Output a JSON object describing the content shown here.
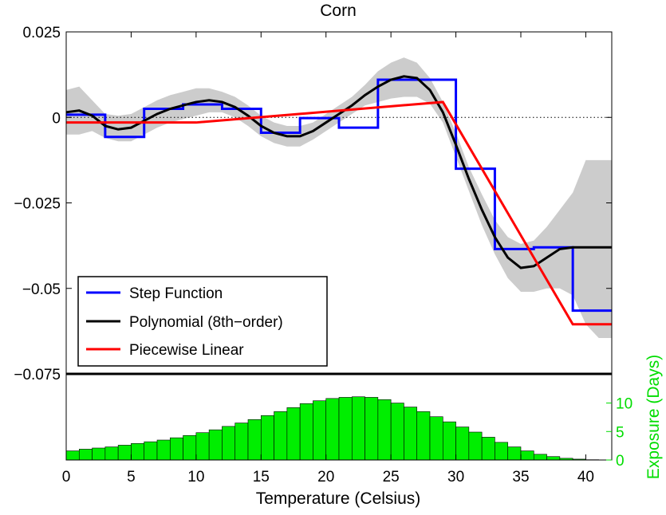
{
  "chart_data": {
    "type": "line",
    "title": "Corn",
    "xlabel": "Temperature (Celsius)",
    "ylabel": "",
    "y2label": "Exposure (Days)",
    "xlim": [
      0,
      42
    ],
    "ylim": [
      -0.075,
      0.025
    ],
    "y2lim": [
      0,
      14
    ],
    "xticks": [
      "0",
      "5",
      "10",
      "15",
      "20",
      "25",
      "30",
      "35",
      "40"
    ],
    "yticks": [
      "0.025",
      "0",
      "−0.025",
      "−0.05",
      "−0.075"
    ],
    "y2ticks": [
      "0",
      "5",
      "10"
    ],
    "grid": false,
    "legend_position": "lower-left",
    "zero_line": "dotted",
    "colors": {
      "step": "#0000ff",
      "poly": "#000000",
      "piecewise": "#ff0000",
      "band": "#cccccc",
      "exposure": "#00ee00",
      "y2axis": "#00dd00"
    },
    "series": [
      {
        "name": "Step Function",
        "kind": "step",
        "breaks": [
          0,
          3,
          6,
          9,
          12,
          15,
          18,
          21,
          24,
          27,
          30,
          33,
          36,
          39,
          42
        ],
        "values": [
          0.0008,
          -0.0057,
          0.0025,
          0.0038,
          0.0025,
          -0.0045,
          -0.0002,
          -0.003,
          0.011,
          0.011,
          -0.015,
          -0.0385,
          -0.038,
          -0.0565
        ]
      },
      {
        "name": "Polynomial (8th−order)",
        "kind": "line",
        "x": [
          0,
          1,
          2,
          3,
          4,
          5,
          6,
          7,
          8,
          9,
          10,
          11,
          12,
          13,
          14,
          15,
          16,
          17,
          18,
          19,
          20,
          21,
          22,
          23,
          24,
          25,
          26,
          27,
          28,
          29,
          30,
          31,
          32,
          33,
          34,
          35,
          36,
          37,
          38,
          39,
          40,
          41,
          42
        ],
        "y": [
          0.0015,
          0.002,
          0.0005,
          -0.0025,
          -0.0035,
          -0.003,
          -0.001,
          0.001,
          0.0025,
          0.0035,
          0.0045,
          0.005,
          0.0045,
          0.003,
          0.0005,
          -0.0025,
          -0.0045,
          -0.0055,
          -0.0055,
          -0.004,
          -0.0015,
          0.001,
          0.0035,
          0.0065,
          0.009,
          0.011,
          0.012,
          0.0115,
          0.008,
          0.0015,
          -0.008,
          -0.018,
          -0.027,
          -0.035,
          -0.041,
          -0.044,
          -0.0435,
          -0.041,
          -0.0385,
          -0.038,
          -0.038,
          -0.038,
          -0.038
        ]
      },
      {
        "name": "Piecewise Linear",
        "kind": "line",
        "x": [
          0,
          10,
          29,
          39,
          42
        ],
        "y": [
          -0.0015,
          -0.0015,
          0.0045,
          -0.0605,
          -0.0605
        ]
      }
    ],
    "confidence_band": {
      "x": [
        0,
        1,
        2,
        3,
        4,
        5,
        6,
        7,
        8,
        9,
        10,
        11,
        12,
        13,
        14,
        15,
        16,
        17,
        18,
        19,
        20,
        21,
        22,
        23,
        24,
        25,
        26,
        27,
        28,
        29,
        30,
        31,
        32,
        33,
        34,
        35,
        36,
        37,
        38,
        39,
        40,
        41,
        42
      ],
      "upper": [
        0.008,
        0.009,
        0.005,
        0.001,
        0.0005,
        0.001,
        0.003,
        0.005,
        0.0065,
        0.0075,
        0.0085,
        0.0085,
        0.0075,
        0.006,
        0.0035,
        0.0005,
        -0.0015,
        -0.0025,
        -0.0025,
        -0.0015,
        0.001,
        0.0035,
        0.006,
        0.0095,
        0.0135,
        0.016,
        0.0175,
        0.016,
        0.0115,
        0.0045,
        -0.0045,
        -0.0145,
        -0.0225,
        -0.03,
        -0.035,
        -0.037,
        -0.036,
        -0.032,
        -0.027,
        -0.022,
        -0.0125,
        -0.0125,
        -0.0125
      ],
      "lower": [
        -0.005,
        -0.005,
        -0.004,
        -0.006,
        -0.007,
        -0.007,
        -0.005,
        -0.003,
        -0.0015,
        -0.0005,
        0.0005,
        0.0015,
        0.0015,
        0.0,
        -0.0025,
        -0.0055,
        -0.0075,
        -0.0085,
        -0.0085,
        -0.0065,
        -0.004,
        -0.0015,
        0.001,
        0.0035,
        0.0045,
        0.0055,
        0.006,
        0.006,
        0.004,
        -0.0015,
        -0.0115,
        -0.0215,
        -0.0315,
        -0.04,
        -0.047,
        -0.051,
        -0.051,
        -0.05,
        -0.05,
        -0.052,
        -0.0605,
        -0.0645,
        -0.0645
      ]
    },
    "exposure": {
      "bin_start": 0,
      "bin_width": 1,
      "values": [
        1.6,
        1.9,
        2.1,
        2.3,
        2.6,
        2.9,
        3.2,
        3.5,
        3.9,
        4.3,
        4.8,
        5.3,
        5.9,
        6.5,
        7.1,
        7.8,
        8.5,
        9.2,
        9.9,
        10.4,
        10.8,
        11.0,
        11.1,
        11.0,
        10.6,
        10.0,
        9.3,
        8.5,
        7.6,
        6.7,
        5.8,
        4.9,
        4.0,
        3.1,
        2.3,
        1.6,
        1.0,
        0.6,
        0.3,
        0.15,
        0.05,
        0.0
      ]
    }
  }
}
